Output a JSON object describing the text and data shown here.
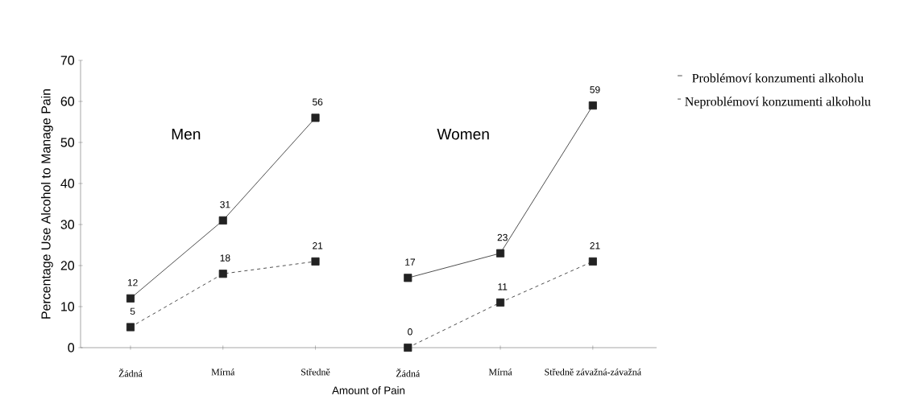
{
  "chart_data": {
    "type": "line",
    "categories": [
      "Žádná",
      "Mírná",
      "Středně",
      "Žádná",
      "Mírná",
      "Středně závažná-závažná"
    ],
    "series": [
      {
        "name": "Problémoví konzumenti alkoholu",
        "color": "#222222",
        "line_style": "solid",
        "values": [
          12,
          31,
          56,
          null,
          null,
          null
        ]
      },
      {
        "name": "Neproblémoví konzumenti alkoholu",
        "color": "#222222",
        "line_style": "dashed",
        "values": [
          5,
          18,
          21,
          null,
          null,
          null
        ]
      },
      {
        "color": "#222222",
        "line_style": "solid",
        "values": [
          null,
          null,
          null,
          17,
          23,
          59
        ]
      },
      {
        "color": "#222222",
        "line_style": "dashed",
        "values": [
          null,
          null,
          null,
          0,
          11,
          21
        ]
      }
    ],
    "xlabel": "Amount of Pain",
    "ylabel": "Percentage Use Alcohol to Manage Pain",
    "ylim": [
      0,
      70
    ],
    "yticks": [
      0,
      10,
      20,
      30,
      40,
      50,
      60,
      70
    ],
    "annotations": [
      "Men",
      "Women"
    ],
    "marker": "square",
    "data_labels": true,
    "legend": "top right",
    "grid": false
  }
}
